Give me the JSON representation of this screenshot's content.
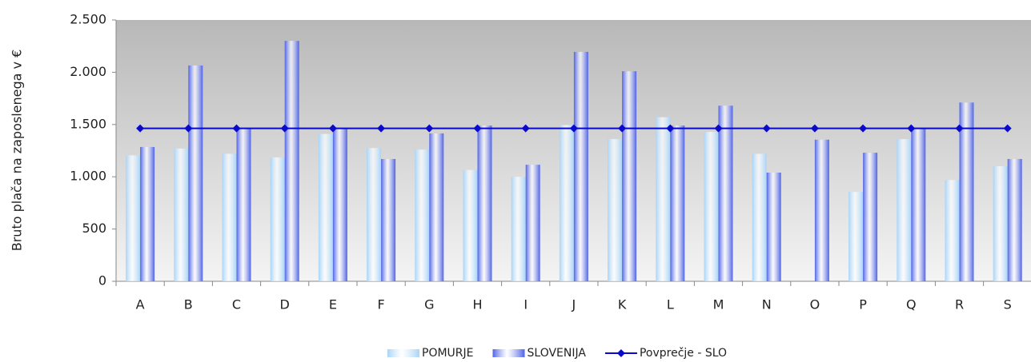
{
  "chart_data": {
    "type": "bar",
    "y_label": "Bruto plača na zaposlenega v €",
    "categories": [
      "A",
      "B",
      "C",
      "D",
      "E",
      "F",
      "G",
      "H",
      "I",
      "J",
      "K",
      "L",
      "M",
      "N",
      "O",
      "P",
      "Q",
      "R",
      "S"
    ],
    "series": [
      {
        "name": "POMURJE",
        "color": "#a8d4f8",
        "values": [
          1205,
          1270,
          1220,
          1185,
          1410,
          1275,
          1260,
          1065,
          1000,
          1495,
          1360,
          1570,
          1430,
          1220,
          null,
          855,
          1360,
          970,
          1100
        ]
      },
      {
        "name": "SLOVENIJA",
        "color": "#4f63e6",
        "values": [
          1285,
          2065,
          1460,
          2300,
          1460,
          1170,
          1415,
          1490,
          1115,
          2195,
          2010,
          1490,
          1680,
          1040,
          1355,
          1230,
          1460,
          1710,
          1170
        ]
      },
      {
        "name": "Povprečje - SLO",
        "type": "line",
        "color": "#0a0acc",
        "values": [
          1463,
          1463,
          1463,
          1463,
          1463,
          1463,
          1463,
          1463,
          1463,
          1463,
          1463,
          1463,
          1463,
          1463,
          1463,
          1463,
          1463,
          1463,
          1463
        ]
      }
    ],
    "ylim": [
      0,
      2500
    ],
    "yticks": [
      0,
      500,
      {
        "value": 1000,
        "label": "1.000"
      },
      {
        "value": 1500,
        "label": "1.500"
      },
      {
        "value": 2000,
        "label": "2.000"
      },
      {
        "value": 2500,
        "label": "2.500"
      }
    ],
    "grid": false,
    "legend": "bottom"
  }
}
